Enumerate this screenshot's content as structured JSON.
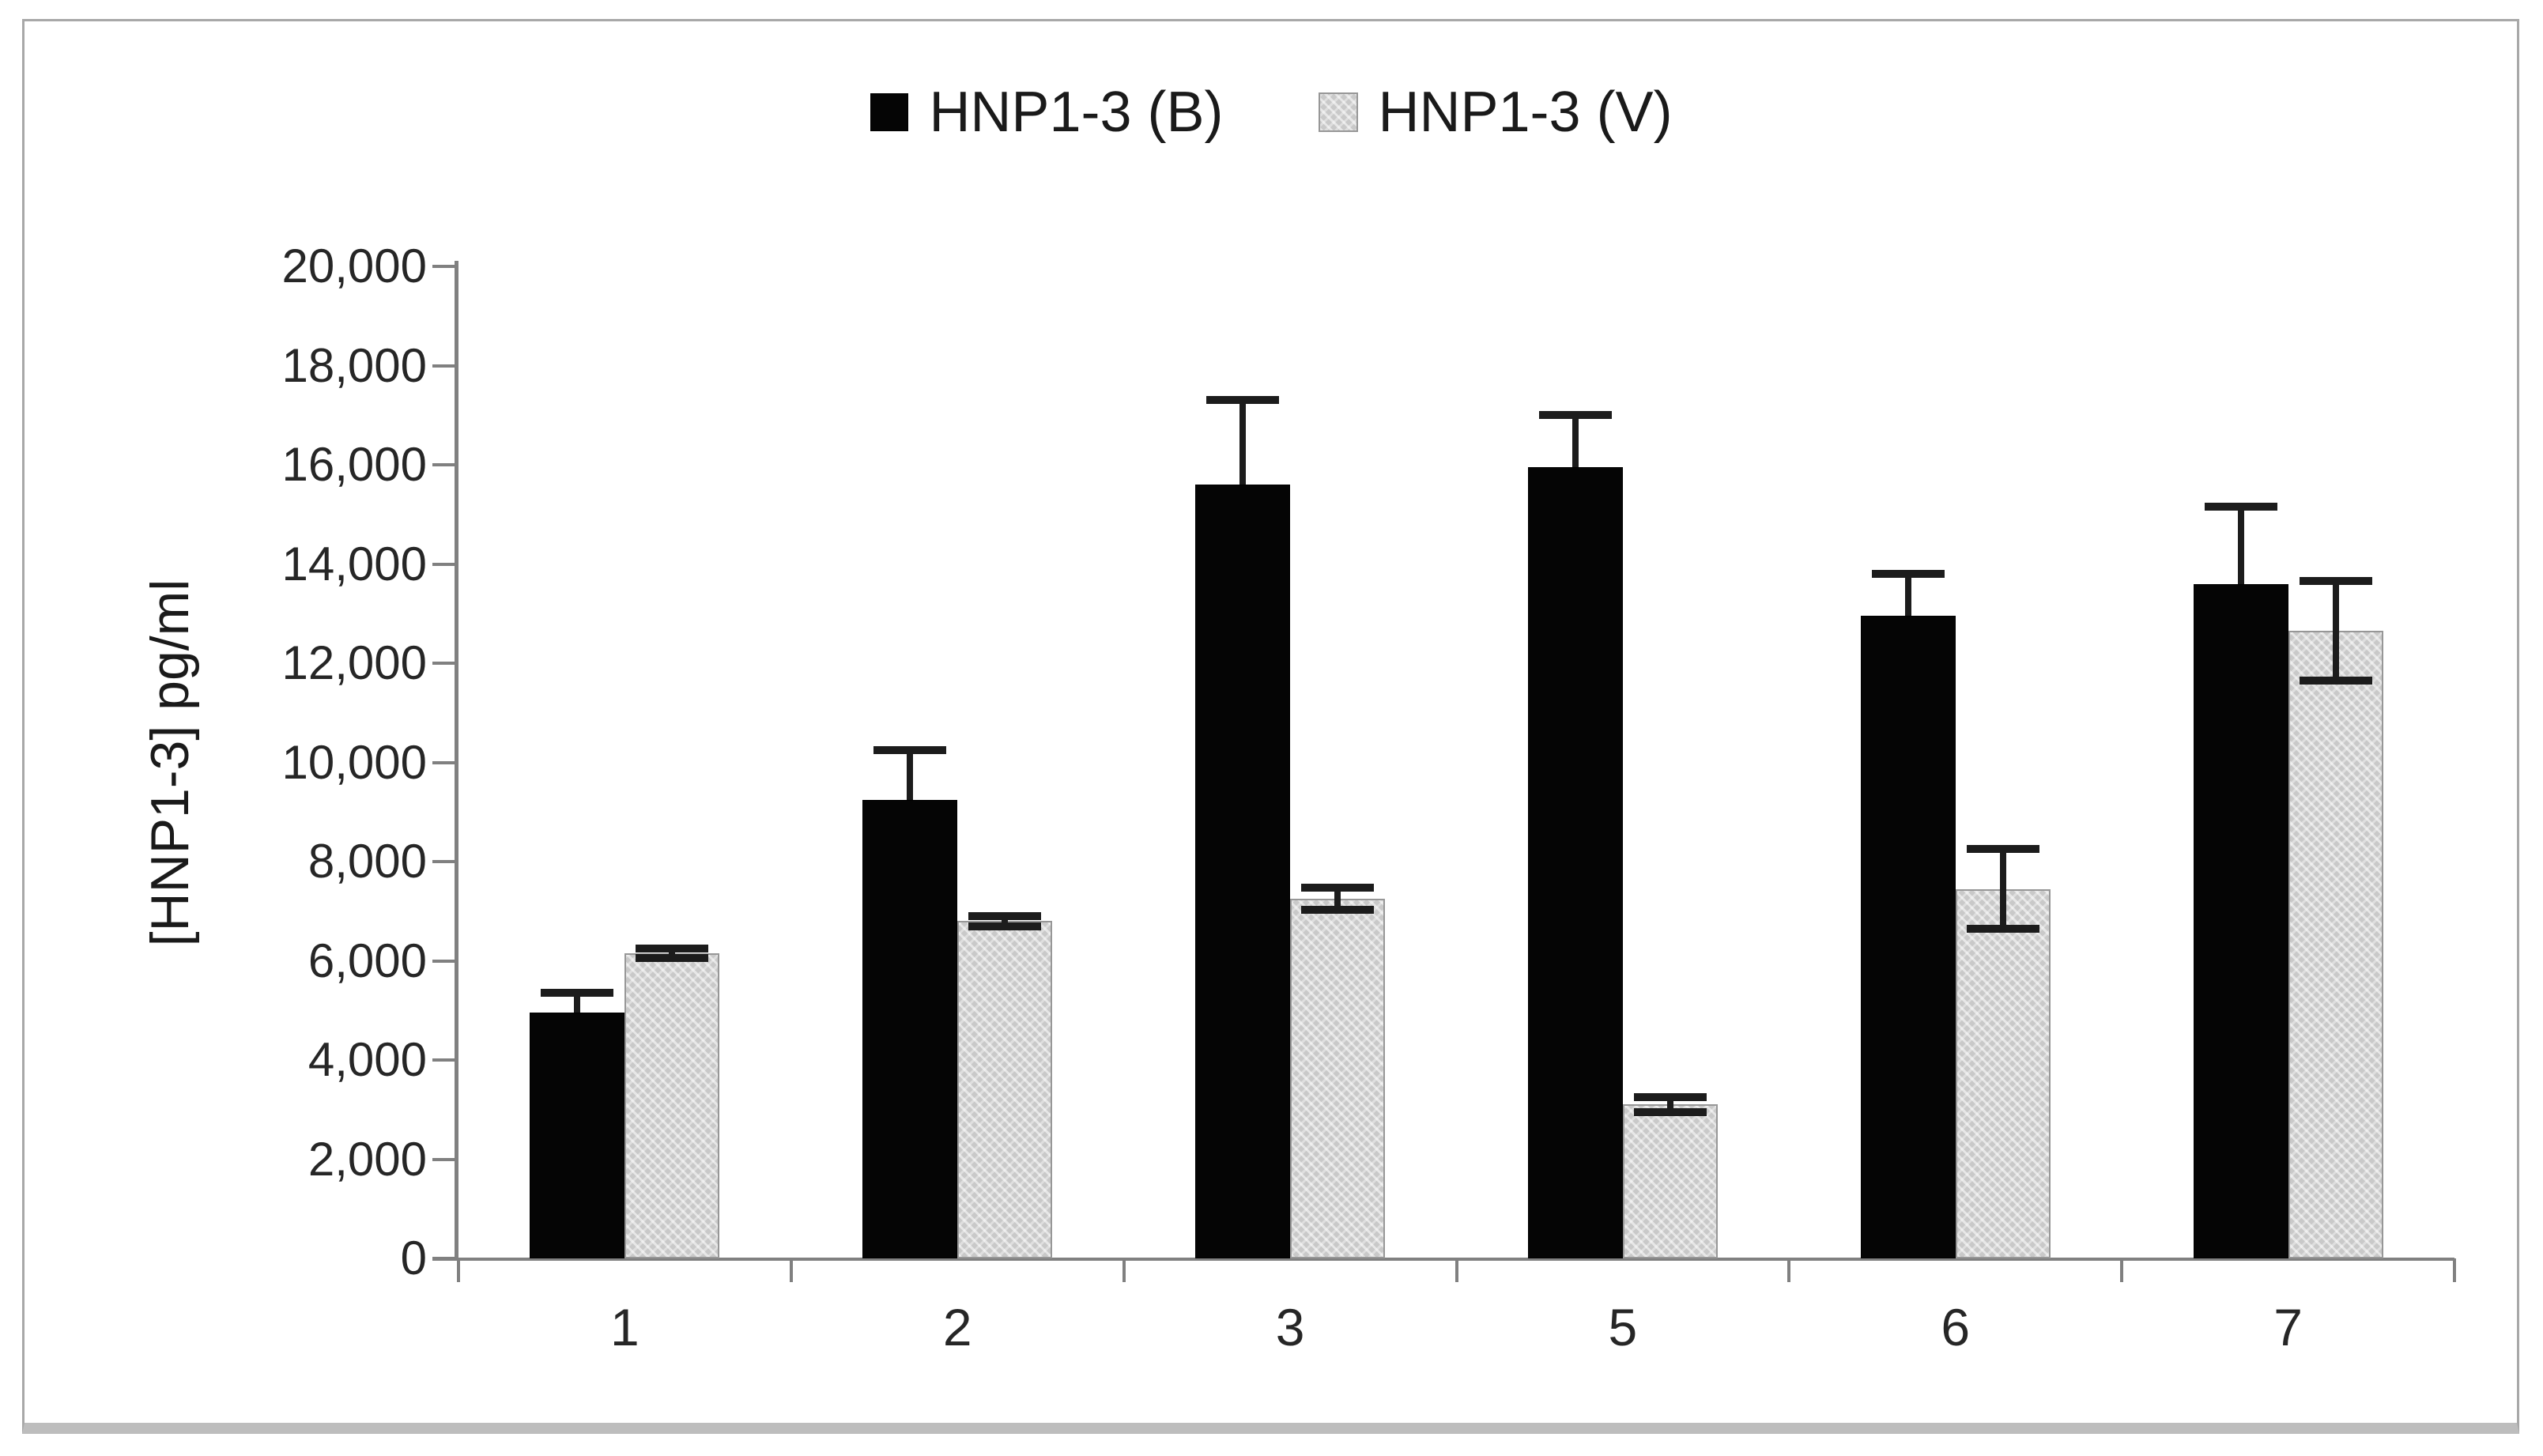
{
  "figure": {
    "background": "#ffffff",
    "border_color": "#a8a8a8"
  },
  "legend": {
    "items": [
      {
        "label": "HNP1-3 (B)",
        "swatch_color": "#000000",
        "swatch_style": "solid-black-square"
      },
      {
        "label": "HNP1-3 (V)",
        "swatch_color": "#c9c9c9",
        "swatch_style": "patterned-gray-square"
      }
    ]
  },
  "axes": {
    "y_label": "[HNP1-3] pg/ml",
    "y_tick_labels": [
      "20,000",
      "18,000",
      "16,000",
      "14,000",
      "12,000",
      "10,000",
      "8,000",
      "6,000",
      "4,000",
      "2,000",
      "0"
    ],
    "x_tick_labels": [
      "1",
      "2",
      "3",
      "5",
      "6",
      "7"
    ],
    "axis_color": "#808080"
  },
  "chart_data": {
    "type": "bar",
    "title": "",
    "xlabel": "",
    "ylabel": "[HNP1-3] pg/ml",
    "units": "pg/ml",
    "ylim": [
      0,
      20000
    ],
    "ytick_step": 2000,
    "grid": false,
    "legend_position": "top-center",
    "categories": [
      "1",
      "2",
      "3",
      "5",
      "6",
      "7"
    ],
    "series": [
      {
        "name": "HNP1-3 (B)",
        "color": "#000000",
        "values": [
          4950,
          9250,
          15600,
          15950,
          12950,
          13600
        ],
        "error_plus": [
          400,
          1000,
          1700,
          1050,
          850,
          1550
        ],
        "error_minus": [
          0,
          0,
          0,
          0,
          0,
          0
        ]
      },
      {
        "name": "HNP1-3 (V)",
        "color": "#c9c9c9",
        "values": [
          6150,
          6800,
          7250,
          3100,
          7450,
          12650
        ],
        "error_plus": [
          100,
          100,
          220,
          150,
          800,
          1000
        ],
        "error_minus": [
          100,
          100,
          220,
          150,
          800,
          1000
        ]
      }
    ]
  }
}
